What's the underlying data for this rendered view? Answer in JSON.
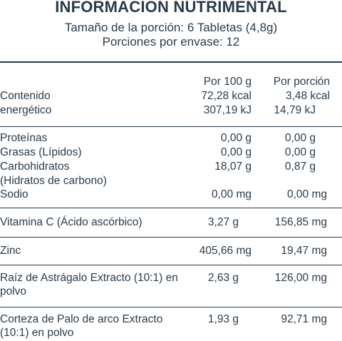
{
  "header": {
    "title": "INFORMACIÓN NUTRIMENTAL",
    "serving_size": "Tamaño de la porción: 6 Tabletas (4,8g)",
    "servings_per_container": "Porciones por envase: 12"
  },
  "columns": {
    "per_100g": "Por 100 g",
    "per_serving": "Por porción"
  },
  "energy": {
    "label_line1": "Contenido",
    "label_line2": "energético",
    "kcal_100g": "72,28 kcal",
    "kcal_serving": "3,48 kcal",
    "kj_100g": "307,19 kJ",
    "kj_serving": "14,79 kJ"
  },
  "macros": [
    {
      "label": "Proteínas",
      "per_100g": "0,00 g",
      "per_serving": "0,00 g"
    },
    {
      "label": "Grasas (Lípidos)",
      "per_100g": "0,00 g",
      "per_serving": "0,00 g"
    },
    {
      "label": "Carbohidratos",
      "label_line2": "(Hidratos de carbono)",
      "per_100g": "18,07 g",
      "per_serving": "0,87 g"
    },
    {
      "label": "Sodio",
      "per_100g": "0,00 mg",
      "per_serving": "0,00 mg"
    }
  ],
  "vitamin_c": {
    "label": "Vitamina C (Ácido ascórbico)",
    "per_100g": "3,27 g",
    "per_serving": "156,85 mg"
  },
  "zinc": {
    "label": "Zinc",
    "per_100g": "405,66 mg",
    "per_serving": "19,47 mg"
  },
  "astragalus": {
    "label_line1": "Raíz de Astrágalo Extracto (10:1) en",
    "label_line2": "polvo",
    "per_100g": "2,63 g",
    "per_serving": "126,00 mg"
  },
  "pau_darco": {
    "label_line1": "Corteza de Palo de arco Extracto",
    "label_line2": "(10:1) en polvo",
    "per_100g": "1,93 g",
    "per_serving": "92,71 mg"
  }
}
